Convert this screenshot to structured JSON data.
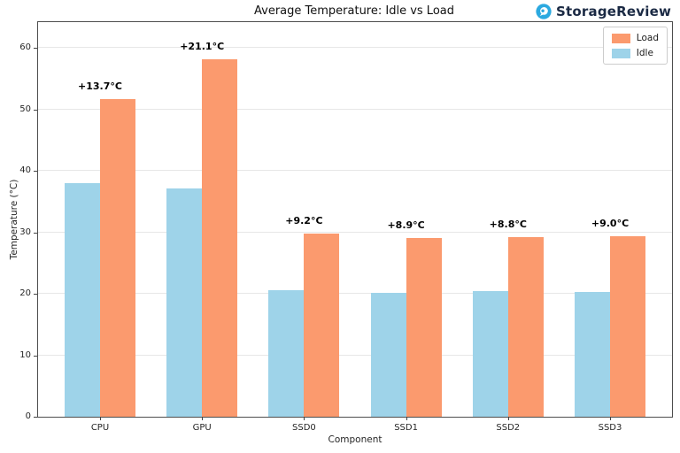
{
  "header": {
    "brand": {
      "name": "StorageReview",
      "icon": "storagereview-logo-icon",
      "icon_color": "#2BA9E0",
      "text_color": "#1b2a44"
    }
  },
  "chart_data": {
    "type": "bar",
    "title": "Average Temperature: Idle vs Load",
    "xlabel": "Component",
    "ylabel": "Temperature (°C)",
    "ylim": [
      0,
      64.2
    ],
    "yticks": [
      0,
      10,
      20,
      30,
      40,
      50,
      60
    ],
    "grid": true,
    "legend_position": "upper right",
    "categories": [
      "CPU",
      "GPU",
      "SSD0",
      "SSD1",
      "SSD2",
      "SSD3"
    ],
    "series": [
      {
        "name": "Idle",
        "color": "#9ED3E9",
        "values": [
          38.0,
          37.1,
          20.6,
          20.2,
          20.4,
          20.3
        ]
      },
      {
        "name": "Load",
        "color": "#FB9A6E",
        "values": [
          51.7,
          58.2,
          29.8,
          29.1,
          29.2,
          29.3
        ]
      }
    ],
    "annotations": [
      "+13.7°C",
      "+21.1°C",
      "+9.2°C",
      "+8.9°C",
      "+8.8°C",
      "+9.0°C"
    ],
    "legend": [
      {
        "label": "Load",
        "color": "#FB9A6E"
      },
      {
        "label": "Idle",
        "color": "#9ED3E9"
      }
    ]
  }
}
